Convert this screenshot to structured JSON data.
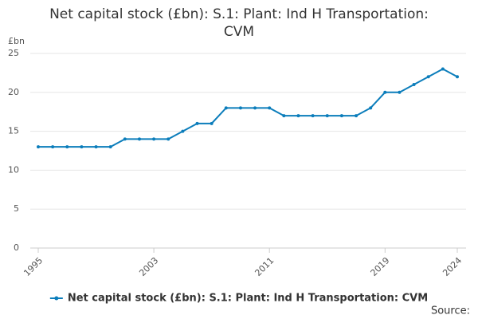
{
  "chart_data": {
    "type": "line",
    "title": "Net capital stock (£bn): S.1: Plant: Ind H Transportation: CVM",
    "y_label": "£bn",
    "source": "Source:",
    "x": [
      1995,
      1996,
      1997,
      1998,
      1999,
      2000,
      2001,
      2002,
      2003,
      2004,
      2005,
      2006,
      2007,
      2008,
      2009,
      2010,
      2011,
      2012,
      2013,
      2014,
      2015,
      2016,
      2017,
      2018,
      2019,
      2020,
      2021,
      2022,
      2023,
      2024
    ],
    "series": [
      {
        "name": "Net capital stock (£bn): S.1: Plant: Ind H Transportation: CVM",
        "color": "#0b7dbb",
        "values": [
          13,
          13,
          13,
          13,
          13,
          13,
          14,
          14,
          14,
          14,
          15,
          16,
          16,
          18,
          18,
          18,
          18,
          17,
          17,
          17,
          17,
          17,
          17,
          18,
          20,
          20,
          21,
          22,
          23,
          22
        ]
      }
    ],
    "xlim": [
      1995,
      2024
    ],
    "xticks": [
      1995,
      2003,
      2011,
      2019,
      2024
    ],
    "ylim": [
      0,
      25
    ],
    "yticks": [
      0,
      5,
      10,
      15,
      20,
      25
    ],
    "grid": true,
    "legend": "bottom"
  }
}
